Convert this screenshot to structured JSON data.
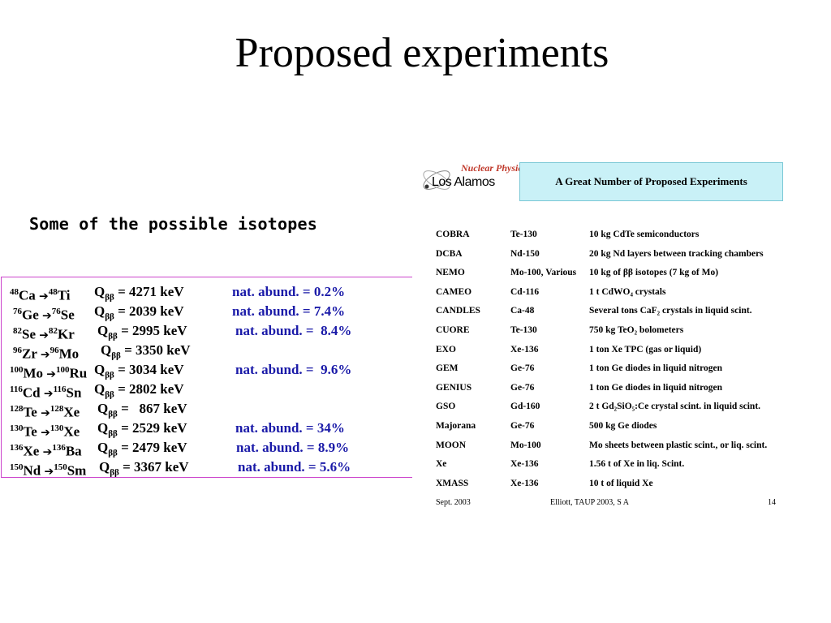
{
  "title": "Proposed experiments",
  "subtitle": "Some of the possible isotopes",
  "isotopes": [
    {
      "m1": "48",
      "e1": "Ca",
      "m2": "48",
      "e2": "Ti",
      "q": "= 4271 keV",
      "abund": "nat. abund. = 0.2%"
    },
    {
      "m1": "76",
      "e1": "Ge",
      "m2": "76",
      "e2": "Se",
      "q": "= 2039 keV",
      "abund": "nat. abund. = 7.4%"
    },
    {
      "m1": "82",
      "e1": "Se",
      "m2": "82",
      "e2": "Kr",
      "q": "= 2995 keV",
      "abund": "nat. abund. =  8.4%"
    },
    {
      "m1": "96",
      "e1": "Zr",
      "m2": "96",
      "e2": "Mo",
      "q": "= 3350 keV",
      "abund": ""
    },
    {
      "m1": "100",
      "e1": "Mo",
      "m2": "100",
      "e2": "Ru",
      "q": "= 3034 keV",
      "abund": "nat. abund. =  9.6%"
    },
    {
      "m1": "116",
      "e1": "Cd",
      "m2": "116",
      "e2": "Sn",
      "q": "= 2802 keV",
      "abund": ""
    },
    {
      "m1": "128",
      "e1": "Te",
      "m2": "128",
      "e2": "Xe",
      "q": "=   867 keV",
      "abund": ""
    },
    {
      "m1": "130",
      "e1": "Te",
      "m2": "130",
      "e2": "Xe",
      "q": "= 2529 keV",
      "abund": "nat. abund. = 34%"
    },
    {
      "m1": "136",
      "e1": "Xe",
      "m2": "136",
      "e2": "Ba",
      "q": "= 2479 keV",
      "abund": "nat. abund. = 8.9%"
    },
    {
      "m1": "150",
      "e1": "Nd",
      "m2": "150",
      "e2": "Sm",
      "q": "= 3367 keV",
      "abund": "nat. abund. = 5.6%"
    }
  ],
  "q_symbol": "Q",
  "q_sub": "ββ",
  "arrow": "➔",
  "figure": {
    "logo_top": "Nuclear Physics",
    "logo_bottom": "Los Alamos",
    "banner": "A Great Number of Proposed Experiments",
    "experiments": [
      {
        "name": "COBRA",
        "isotope": "Te-130",
        "desc": "10 kg CdTe semiconductors"
      },
      {
        "name": "DCBA",
        "isotope": "Nd-150",
        "desc": "20 kg Nd layers between tracking chambers"
      },
      {
        "name": "NEMO",
        "isotope": "Mo-100, Various",
        "desc": "10 kg of ββ isotopes (7 kg of Mo)"
      },
      {
        "name": "CAMEO",
        "isotope": "Cd-116",
        "desc": "1 t CdWO₄ crystals"
      },
      {
        "name": "CANDLES",
        "isotope": "Ca-48",
        "desc": "Several tons CaF₂ crystals in liquid scint."
      },
      {
        "name": "CUORE",
        "isotope": "Te-130",
        "desc": "750 kg TeO₂ bolometers"
      },
      {
        "name": "EXO",
        "isotope": "Xe-136",
        "desc": "1 ton Xe TPC (gas or liquid)"
      },
      {
        "name": "GEM",
        "isotope": "Ge-76",
        "desc": "1 ton Ge diodes in liquid nitrogen"
      },
      {
        "name": "GENIUS",
        "isotope": "Ge-76",
        "desc": "1 ton Ge diodes in liquid nitrogen"
      },
      {
        "name": "GSO",
        "isotope": "Gd-160",
        "desc": "2 t Gd₂SiO₅:Ce crystal scint. in liquid scint."
      },
      {
        "name": "Majorana",
        "isotope": "Ge-76",
        "desc": "500 kg Ge diodes"
      },
      {
        "name": "MOON",
        "isotope": "Mo-100",
        "desc": "Mo sheets between plastic scint., or liq. scint."
      },
      {
        "name": "Xe",
        "isotope": "Xe-136",
        "desc": "1.56 t of Xe in liq. Scint."
      },
      {
        "name": "XMASS",
        "isotope": "Xe-136",
        "desc": "10 t of liquid Xe"
      }
    ],
    "footer_left": "Sept. 2003",
    "footer_center": "Elliott, TAUP 2003, S     A",
    "footer_right": "14"
  }
}
